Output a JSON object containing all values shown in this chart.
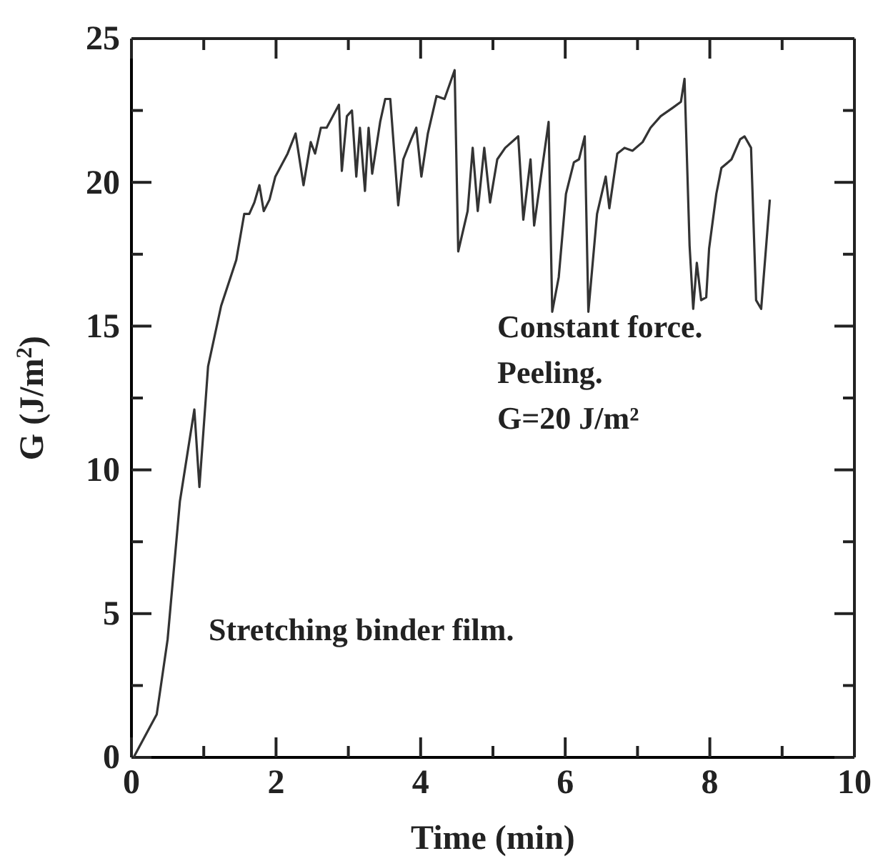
{
  "chart_data": {
    "type": "line",
    "xlabel": "Time (min)",
    "ylabel": "G (J/m$^{2}$)",
    "xlim": [
      0,
      10
    ],
    "ylim": [
      0,
      25
    ],
    "xticks": [
      0,
      {
        "value": 1,
        "label": null
      },
      2,
      {
        "value": 3,
        "label": null
      },
      4,
      {
        "value": 5,
        "label": null
      },
      6,
      {
        "value": 7,
        "label": null
      },
      8,
      {
        "value": 9,
        "label": null
      },
      10
    ],
    "yticks": [
      0,
      {
        "value": 2.5,
        "label": null
      },
      5,
      {
        "value": 7.5,
        "label": null
      },
      10,
      {
        "value": 12.5,
        "label": null
      },
      15,
      {
        "value": 17.5,
        "label": null
      },
      20,
      {
        "value": 22.5,
        "label": null
      },
      25
    ],
    "grid": false,
    "marker": "none",
    "line_style": "solid",
    "annotations": [
      "Constant force.\nPeeling.\nG=20 J/m²",
      "Stretching binder film."
    ],
    "series": [
      {
        "color": "#333333",
        "x": [
          0.03,
          0.35,
          0.5,
          0.67,
          0.87,
          0.94,
          1.06,
          1.24,
          1.45,
          1.56,
          1.63,
          1.7,
          1.77,
          1.83,
          1.91,
          1.99,
          2.16,
          2.27,
          2.38,
          2.48,
          2.54,
          2.62,
          2.7,
          2.87,
          2.91,
          2.98,
          3.05,
          3.11,
          3.16,
          3.23,
          3.28,
          3.33,
          3.44,
          3.51,
          3.58,
          3.69,
          3.76,
          3.87,
          3.94,
          4.01,
          4.1,
          4.22,
          4.33,
          4.47,
          4.52,
          4.65,
          4.72,
          4.79,
          4.88,
          4.96,
          5.06,
          5.17,
          5.35,
          5.42,
          5.52,
          5.57,
          5.77,
          5.82,
          5.91,
          6.01,
          6.12,
          6.19,
          6.27,
          6.32,
          6.44,
          6.56,
          6.61,
          6.72,
          6.82,
          6.93,
          7.07,
          7.18,
          7.32,
          7.49,
          7.6,
          7.65,
          7.72,
          7.77,
          7.82,
          7.88,
          7.95,
          7.99,
          8.09,
          8.16,
          8.3,
          8.42,
          8.48,
          8.57,
          8.64,
          8.71,
          8.83
        ],
        "values": [
          0,
          1.5,
          4.1,
          8.9,
          12.1,
          9.4,
          13.6,
          15.7,
          17.3,
          18.9,
          18.9,
          19.3,
          19.9,
          19.0,
          19.4,
          20.2,
          21.0,
          21.7,
          19.9,
          21.4,
          21.0,
          21.9,
          21.9,
          22.7,
          20.4,
          22.3,
          22.5,
          20.2,
          21.9,
          19.7,
          21.9,
          20.3,
          22.1,
          22.9,
          22.9,
          19.2,
          20.8,
          21.5,
          21.9,
          20.2,
          21.7,
          23.0,
          22.9,
          23.9,
          17.6,
          19.0,
          21.2,
          19.0,
          21.2,
          19.3,
          20.8,
          21.2,
          21.6,
          18.7,
          20.8,
          18.5,
          22.1,
          15.5,
          16.7,
          19.6,
          20.7,
          20.8,
          21.6,
          15.5,
          18.9,
          20.2,
          19.1,
          21.0,
          21.2,
          21.1,
          21.4,
          21.9,
          22.3,
          22.6,
          22.8,
          23.6,
          17.8,
          15.6,
          17.2,
          15.9,
          16.0,
          17.7,
          19.6,
          20.5,
          20.8,
          21.5,
          21.6,
          21.2,
          15.9,
          15.6,
          19.4
        ]
      }
    ]
  }
}
